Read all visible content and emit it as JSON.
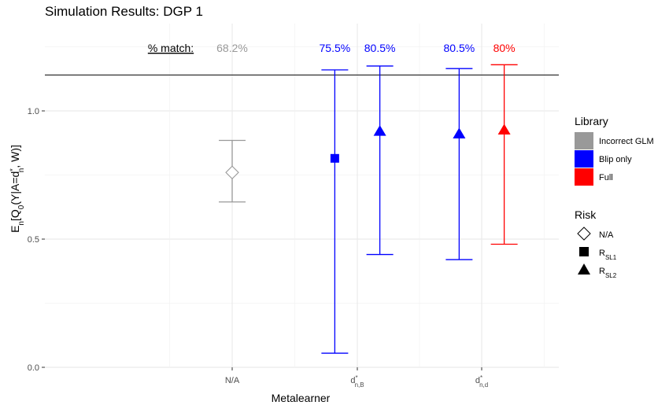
{
  "chart_data": {
    "type": "errorbar",
    "title": "Simulation Results: DGP 1",
    "xlabel": "Metalearner",
    "ylabel": {
      "base": "E",
      "base_sub": "n",
      "pre": "[Q",
      "pre_sub": "0",
      "mid": "(Y|A=d",
      "mid_sub": "n",
      "mid_sup": "*",
      "post": ", W)]"
    },
    "ylim": [
      0.0,
      1.3
    ],
    "y_ticks": [
      "0.0",
      "0.5",
      "1.0"
    ],
    "y_tick_values": [
      0.0,
      0.5,
      1.0
    ],
    "categories": [
      {
        "id": "na",
        "label": "N/A"
      },
      {
        "id": "dnB",
        "label_base": "d",
        "label_sup": "*",
        "label_sub": "n,B"
      },
      {
        "id": "dnd",
        "label_base": "d",
        "label_sup": "*",
        "label_sub": "n,d"
      }
    ],
    "reference_line": 1.14,
    "match_label": "% match:",
    "series": [
      {
        "category": "na",
        "library": "Incorrect GLM",
        "risk": "N/A",
        "estimate": 0.76,
        "lower": 0.645,
        "upper": 0.885,
        "match": "68.2%",
        "color": "#999999",
        "shape": "diamond",
        "offset": 0.0
      },
      {
        "category": "dnB",
        "library": "Blip only",
        "risk": "R_SL1",
        "estimate": 0.815,
        "lower": 0.055,
        "upper": 1.16,
        "match": "75.5%",
        "color": "#0000ff",
        "shape": "square",
        "offset": -0.18
      },
      {
        "category": "dnB",
        "library": "Blip only",
        "risk": "R_SL2",
        "estimate": 0.92,
        "lower": 0.44,
        "upper": 1.175,
        "match": "80.5%",
        "color": "#0000ff",
        "shape": "triangle",
        "offset": 0.18
      },
      {
        "category": "dnd",
        "library": "Blip only",
        "risk": "R_SL2",
        "estimate": 0.91,
        "lower": 0.42,
        "upper": 1.165,
        "match": "80.5%",
        "color": "#0000ff",
        "shape": "triangle",
        "offset": -0.18
      },
      {
        "category": "dnd",
        "library": "Full",
        "risk": "R_SL2",
        "estimate": 0.925,
        "lower": 0.48,
        "upper": 1.18,
        "match": "80%",
        "color": "#ff0000",
        "shape": "triangle",
        "offset": 0.18
      }
    ],
    "legend_library": {
      "title": "Library",
      "items": [
        {
          "label": "Incorrect GLM",
          "color": "#999999"
        },
        {
          "label": "Blip only",
          "color": "#0000ff"
        },
        {
          "label": "Full",
          "color": "#ff0000"
        }
      ]
    },
    "legend_risk": {
      "title": "Risk",
      "items": [
        {
          "label_base": "N/A",
          "label_sub": "",
          "shape": "diamond"
        },
        {
          "label_base": "R",
          "label_sub": "SL1",
          "shape": "square"
        },
        {
          "label_base": "R",
          "label_sub": "SL2",
          "shape": "triangle"
        }
      ]
    },
    "grid": true,
    "legend_position": "right"
  }
}
